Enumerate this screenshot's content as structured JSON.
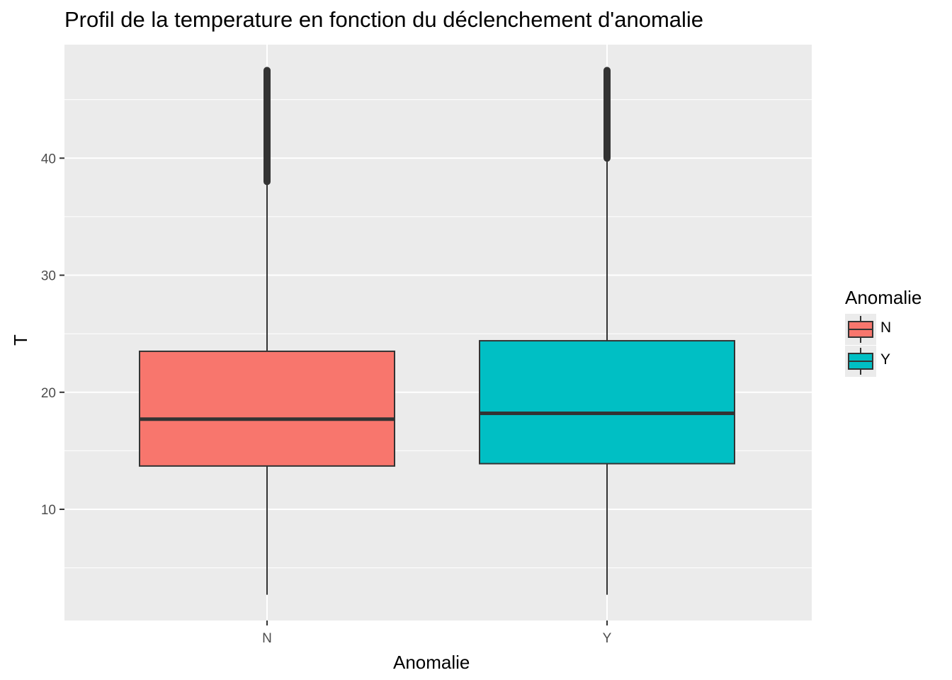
{
  "chart_data": {
    "type": "boxplot",
    "title": "Profil de la temperature en fonction du déclenchement d'anomalie",
    "xlabel": "Anomalie",
    "ylabel": "T",
    "categories": [
      "N",
      "Y"
    ],
    "ylim": [
      0.5,
      49.7
    ],
    "y_ticks": [
      10,
      20,
      30,
      40
    ],
    "y_minor_ticks": [
      5,
      15,
      25,
      35,
      45
    ],
    "grid": true,
    "legend": {
      "title": "Anomalie",
      "position": "right",
      "entries": [
        "N",
        "Y"
      ]
    },
    "boxes": [
      {
        "category": "N",
        "color": "#F8766D",
        "whisker_low": 2.7,
        "q1": 13.7,
        "median": 17.7,
        "q3": 23.5,
        "whisker_high": 38.0,
        "outliers_min": 38.0,
        "outliers_max": 47.5
      },
      {
        "category": "Y",
        "color": "#00BFC4",
        "whisker_low": 2.7,
        "q1": 13.9,
        "median": 18.2,
        "q3": 24.4,
        "whisker_high": 40.0,
        "outliers_min": 40.0,
        "outliers_max": 47.5
      }
    ]
  }
}
